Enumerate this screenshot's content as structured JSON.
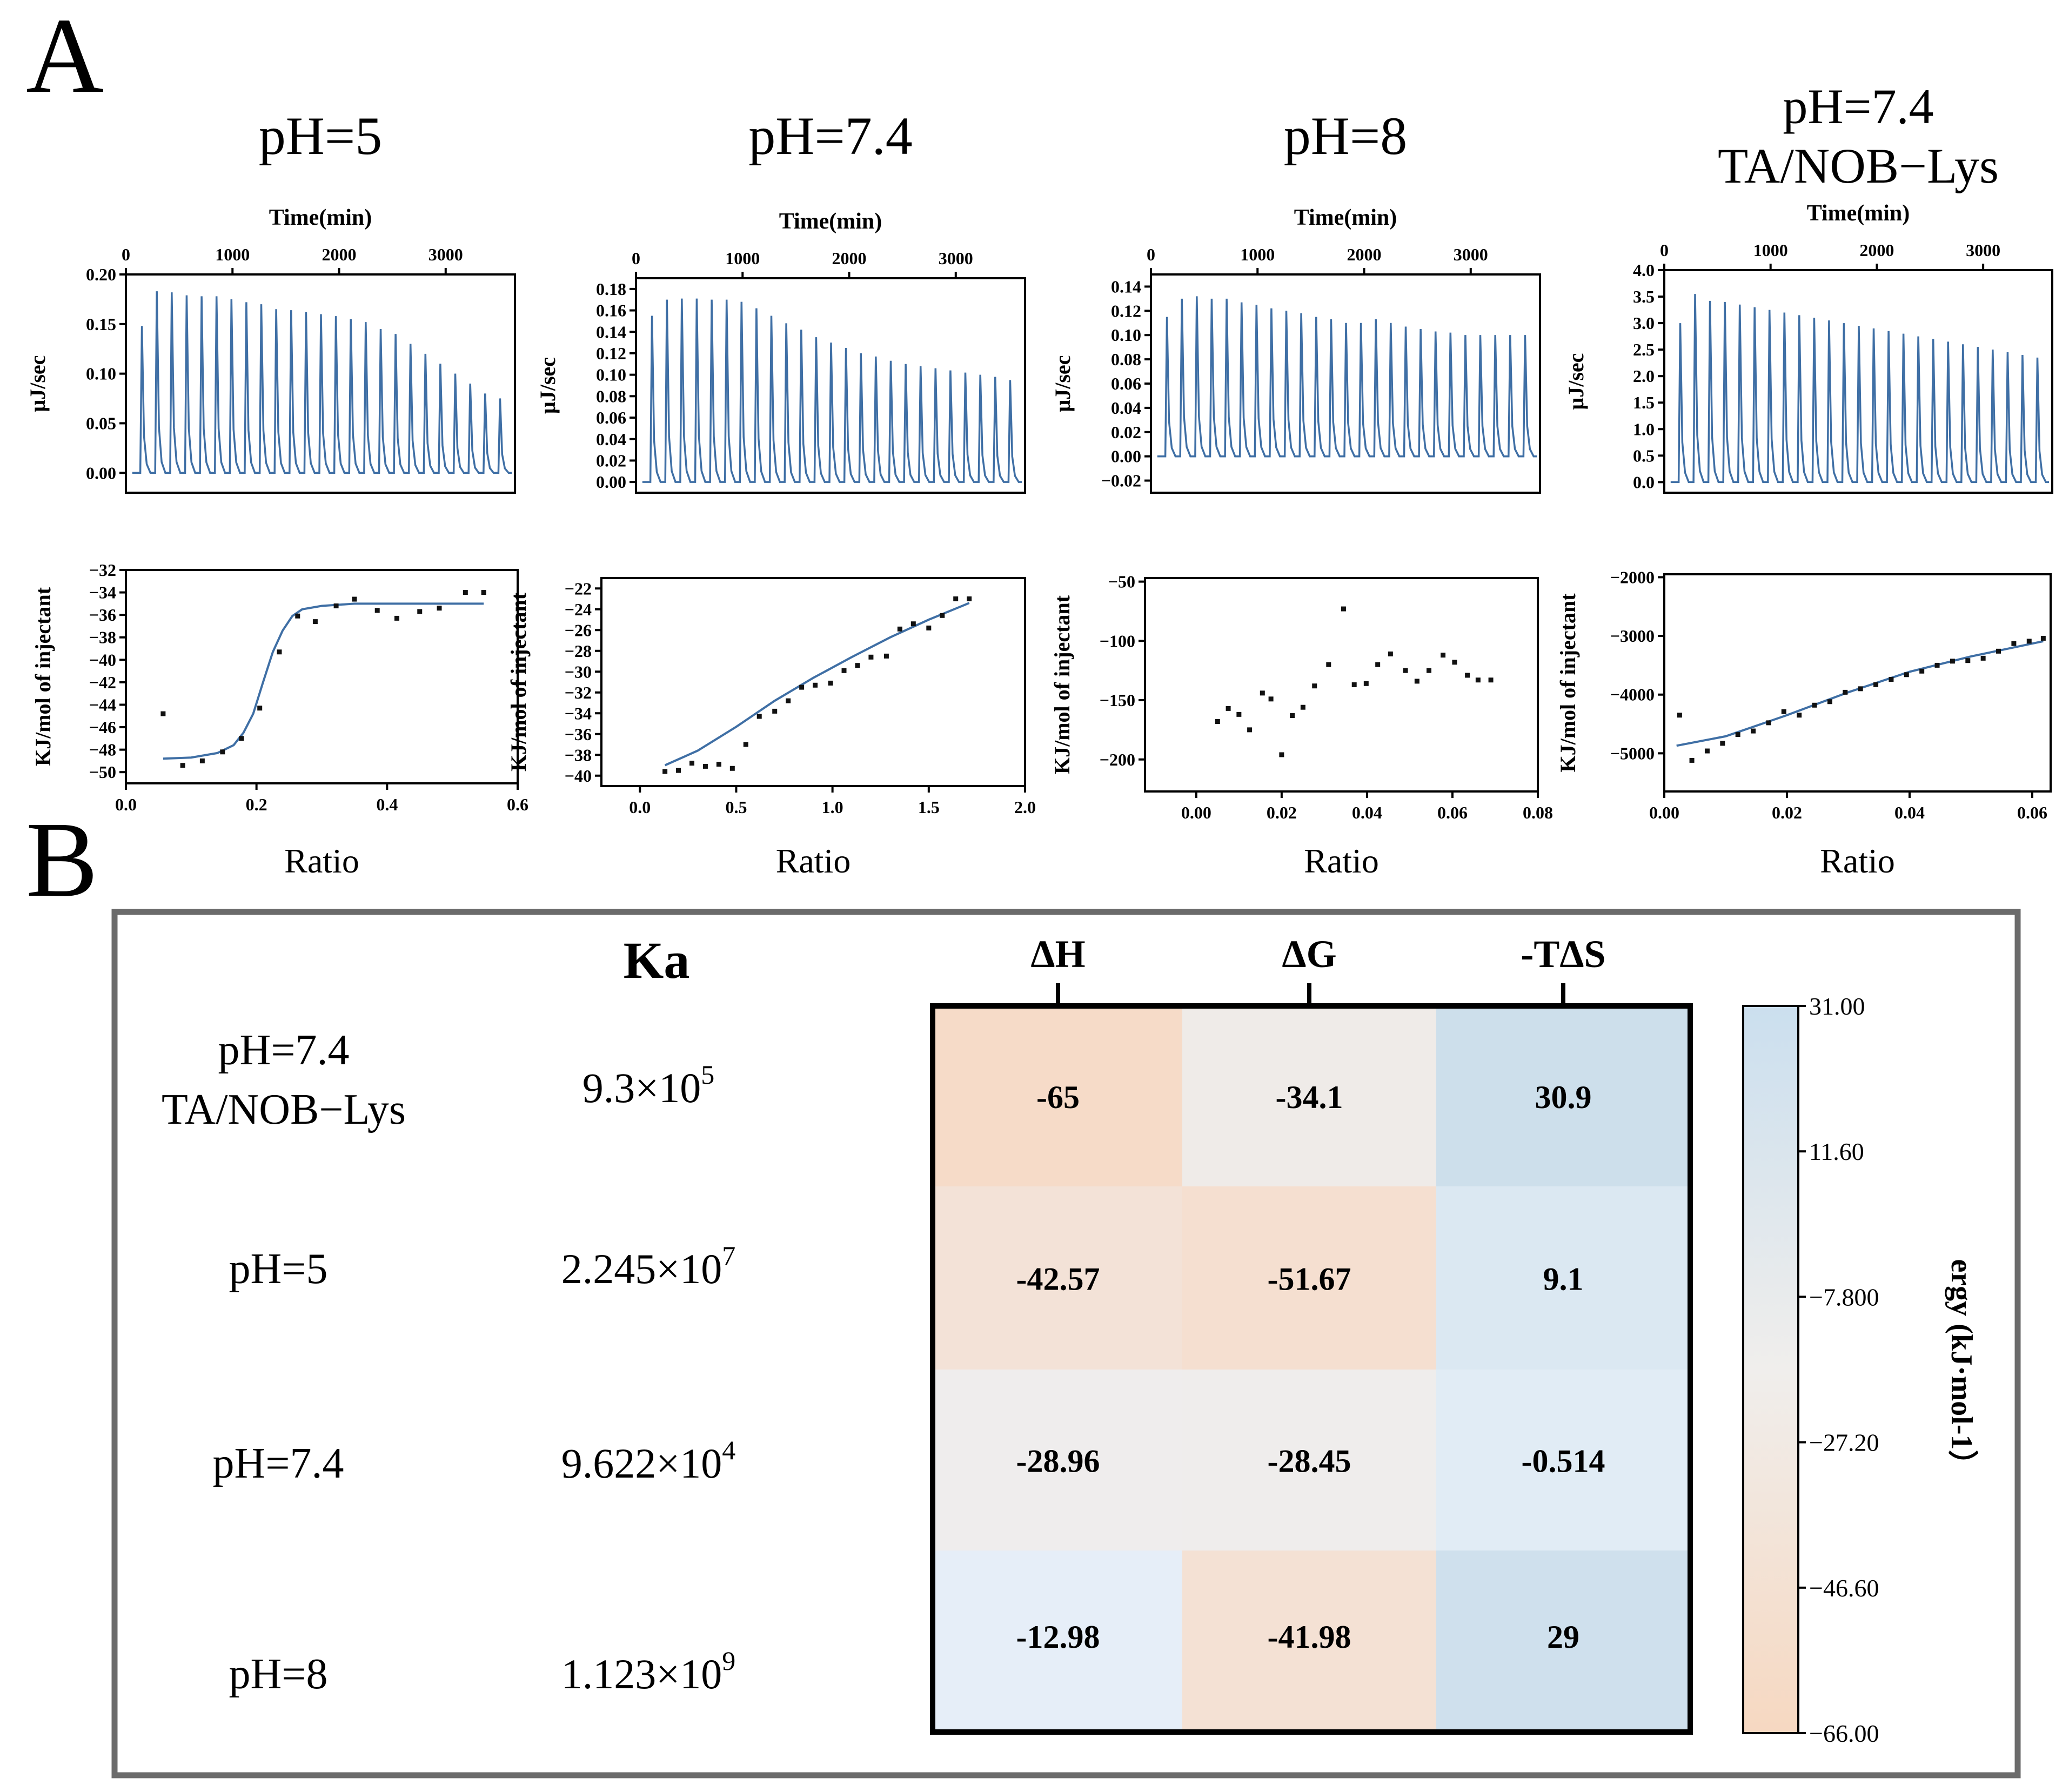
{
  "panel_labels": {
    "a": "A",
    "b": "B"
  },
  "colors": {
    "trace": "#3f6fa5",
    "point": "#111111",
    "axis": "#000000",
    "frame": "#6b6b6b",
    "cmap_low": "#f6d8c1",
    "cmap_mid": "#eeeeee",
    "cmap_high": "#cbdfee"
  },
  "chart_data": [
    {
      "type": "line",
      "id": "raw-ph5",
      "title": "pH=5",
      "xlabel": "Time(min)",
      "ylabel": "μJ/sec",
      "xlim": [
        0,
        3650
      ],
      "ylim": [
        -0.02,
        0.2
      ],
      "xticks": [
        0,
        1000,
        2000,
        3000
      ],
      "yticks": [
        0.0,
        0.05,
        0.1,
        0.15,
        0.2
      ],
      "ytick_labels": [
        "0.00",
        "0.05",
        "0.10",
        "0.15",
        "0.20"
      ],
      "baseline": 0.0,
      "peak_times": [
        150,
        290,
        430,
        570,
        710,
        850,
        990,
        1130,
        1270,
        1410,
        1550,
        1690,
        1830,
        1970,
        2110,
        2250,
        2390,
        2530,
        2670,
        2810,
        2950,
        3090,
        3230,
        3370,
        3510
      ],
      "peak_heights": [
        0.148,
        0.183,
        0.182,
        0.179,
        0.178,
        0.178,
        0.175,
        0.172,
        0.17,
        0.165,
        0.164,
        0.162,
        0.16,
        0.158,
        0.155,
        0.152,
        0.145,
        0.14,
        0.13,
        0.12,
        0.11,
        0.1,
        0.09,
        0.08,
        0.075
      ]
    },
    {
      "type": "line",
      "id": "raw-ph74",
      "title": "pH=7.4",
      "xlabel": "Time(min)",
      "ylabel": "μJ/sec",
      "xlim": [
        0,
        3650
      ],
      "ylim": [
        -0.01,
        0.19
      ],
      "xticks": [
        0,
        1000,
        2000,
        3000
      ],
      "yticks": [
        0.0,
        0.02,
        0.04,
        0.06,
        0.08,
        0.1,
        0.12,
        0.14,
        0.16,
        0.18
      ],
      "ytick_labels": [
        "0.00",
        "0.02",
        "0.04",
        "0.06",
        "0.08",
        "0.10",
        "0.12",
        "0.14",
        "0.16",
        "0.18"
      ],
      "baseline": 0.0,
      "peak_times": [
        150,
        290,
        430,
        570,
        710,
        850,
        990,
        1130,
        1270,
        1410,
        1550,
        1690,
        1830,
        1970,
        2110,
        2250,
        2390,
        2530,
        2670,
        2810,
        2950,
        3090,
        3230,
        3370,
        3510
      ],
      "peak_heights": [
        0.155,
        0.17,
        0.171,
        0.171,
        0.17,
        0.17,
        0.168,
        0.162,
        0.155,
        0.148,
        0.142,
        0.135,
        0.13,
        0.125,
        0.12,
        0.117,
        0.113,
        0.11,
        0.108,
        0.106,
        0.104,
        0.102,
        0.1,
        0.098,
        0.095
      ]
    },
    {
      "type": "line",
      "id": "raw-ph8",
      "title": "pH=8",
      "xlabel": "Time(min)",
      "ylabel": "μJ/sec",
      "xlim": [
        0,
        3650
      ],
      "ylim": [
        -0.03,
        0.15
      ],
      "xticks": [
        0,
        1000,
        2000,
        3000
      ],
      "yticks": [
        -0.02,
        0.0,
        0.02,
        0.04,
        0.06,
        0.08,
        0.1,
        0.12,
        0.14
      ],
      "ytick_labels": [
        "−0.02",
        "0.00",
        "0.02",
        "0.04",
        "0.06",
        "0.08",
        "0.10",
        "0.12",
        "0.14"
      ],
      "baseline": 0.0,
      "peak_times": [
        150,
        290,
        430,
        570,
        710,
        850,
        990,
        1130,
        1270,
        1410,
        1550,
        1690,
        1830,
        1970,
        2110,
        2250,
        2390,
        2530,
        2670,
        2810,
        2950,
        3090,
        3230,
        3370,
        3510
      ],
      "peak_heights": [
        0.115,
        0.13,
        0.132,
        0.13,
        0.13,
        0.127,
        0.125,
        0.122,
        0.12,
        0.118,
        0.115,
        0.113,
        0.11,
        0.11,
        0.113,
        0.11,
        0.107,
        0.105,
        0.103,
        0.102,
        0.1,
        0.1,
        0.1,
        0.1,
        0.1
      ]
    },
    {
      "type": "line",
      "id": "raw-ph74-tanob",
      "title": "pH=7.4\nTA/NOB−Lys",
      "title_lines": [
        "pH=7.4",
        "TA/NOB−Lys"
      ],
      "xlabel": "Time(min)",
      "ylabel": "μJ/sec",
      "xlim": [
        0,
        3650
      ],
      "ylim": [
        -0.2,
        4.0
      ],
      "xticks": [
        0,
        1000,
        2000,
        3000
      ],
      "yticks": [
        0.0,
        0.5,
        1.0,
        1.5,
        2.0,
        2.5,
        3.0,
        3.5,
        4.0
      ],
      "ytick_labels": [
        "0.0",
        "0.5",
        "1.0",
        "1.5",
        "2.0",
        "2.5",
        "3.0",
        "3.5",
        "4.0"
      ],
      "baseline": 0.0,
      "peak_times": [
        150,
        290,
        430,
        570,
        710,
        850,
        990,
        1130,
        1270,
        1410,
        1550,
        1690,
        1830,
        1970,
        2110,
        2250,
        2390,
        2530,
        2670,
        2810,
        2950,
        3090,
        3230,
        3370,
        3510
      ],
      "peak_heights": [
        3.0,
        3.55,
        3.42,
        3.4,
        3.35,
        3.3,
        3.25,
        3.2,
        3.15,
        3.1,
        3.05,
        3.0,
        2.95,
        2.9,
        2.85,
        2.8,
        2.75,
        2.7,
        2.65,
        2.6,
        2.55,
        2.5,
        2.45,
        2.4,
        2.35
      ]
    },
    {
      "type": "scatter",
      "id": "iso-ph5",
      "xlabel": "Ratio",
      "ylabel": "KJ/mol of injectant",
      "xlim": [
        0.0,
        0.6
      ],
      "ylim": [
        -51,
        -32
      ],
      "xticks": [
        0.0,
        0.2,
        0.4,
        0.6
      ],
      "xtick_labels": [
        "0.0",
        "0.2",
        "0.4",
        "0.6"
      ],
      "yticks": [
        -32,
        -34,
        -36,
        -38,
        -40,
        -42,
        -44,
        -46,
        -48,
        -50
      ],
      "ytick_labels": [
        "−32",
        "−34",
        "−36",
        "−38",
        "−40",
        "−42",
        "−44",
        "−46",
        "−48",
        "−50"
      ],
      "points": {
        "x": [
          0.057,
          0.087,
          0.117,
          0.148,
          0.177,
          0.205,
          0.235,
          0.263,
          0.29,
          0.322,
          0.35,
          0.385,
          0.415,
          0.45,
          0.48,
          0.52,
          0.548
        ],
        "y": [
          -44.8,
          -49.4,
          -49.0,
          -48.2,
          -47.0,
          -44.3,
          -39.3,
          -36.1,
          -36.6,
          -35.2,
          -34.6,
          -35.6,
          -36.3,
          -35.7,
          -35.4,
          -34.0,
          -34.0
        ]
      },
      "fit": {
        "x": [
          0.057,
          0.1,
          0.14,
          0.165,
          0.18,
          0.195,
          0.21,
          0.225,
          0.24,
          0.255,
          0.27,
          0.3,
          0.35,
          0.4,
          0.45,
          0.5,
          0.548
        ],
        "y": [
          -48.8,
          -48.7,
          -48.3,
          -47.6,
          -46.5,
          -44.8,
          -42.0,
          -39.3,
          -37.4,
          -36.1,
          -35.5,
          -35.2,
          -35.0,
          -35.0,
          -35.0,
          -35.0,
          -35.0
        ]
      }
    },
    {
      "type": "scatter",
      "id": "iso-ph74",
      "xlabel": "Ratio",
      "ylabel": "KJ/mol of injectant",
      "xlim": [
        -0.2,
        2.0
      ],
      "ylim": [
        -41,
        -21
      ],
      "xticks": [
        0.0,
        0.5,
        1.0,
        1.5,
        2.0
      ],
      "xtick_labels": [
        "0.0",
        "0.5",
        "1.0",
        "1.5",
        "2.0"
      ],
      "yticks": [
        -22,
        -24,
        -26,
        -28,
        -30,
        -32,
        -34,
        -36,
        -38,
        -40
      ],
      "ytick_labels": [
        "−22",
        "−24",
        "−26",
        "−28",
        "−30",
        "−32",
        "−34",
        "−36",
        "−38",
        "−40"
      ],
      "points": {
        "x": [
          0.13,
          0.2,
          0.27,
          0.34,
          0.41,
          0.48,
          0.55,
          0.62,
          0.7,
          0.77,
          0.84,
          0.91,
          0.99,
          1.06,
          1.13,
          1.2,
          1.28,
          1.35,
          1.42,
          1.5,
          1.57,
          1.64,
          1.71
        ],
        "y": [
          -39.6,
          -39.5,
          -38.8,
          -39.1,
          -38.9,
          -39.3,
          -37.0,
          -34.3,
          -33.8,
          -32.8,
          -31.5,
          -31.3,
          -31.1,
          -29.9,
          -29.4,
          -28.6,
          -28.5,
          -25.9,
          -25.4,
          -25.8,
          -24.6,
          -23.0,
          -23.0
        ]
      },
      "fit": {
        "x": [
          0.13,
          0.3,
          0.5,
          0.7,
          0.9,
          1.1,
          1.3,
          1.5,
          1.71
        ],
        "y": [
          -39.0,
          -37.6,
          -35.3,
          -32.8,
          -30.6,
          -28.6,
          -26.7,
          -25.0,
          -23.4
        ]
      }
    },
    {
      "type": "scatter",
      "id": "iso-ph8",
      "xlabel": "Ratio",
      "ylabel": "KJ/mol of injectant",
      "xlim": [
        -0.012,
        0.08
      ],
      "ylim": [
        -227,
        -47
      ],
      "xticks": [
        0.0,
        0.02,
        0.04,
        0.06,
        0.08
      ],
      "xtick_labels": [
        "0.00",
        "0.02",
        "0.04",
        "0.06",
        "0.08"
      ],
      "yticks": [
        -50,
        -100,
        -150,
        -200
      ],
      "ytick_labels": [
        "−50",
        "−100",
        "−150",
        "−200"
      ],
      "points": {
        "x": [
          0.005,
          0.0075,
          0.01,
          0.0125,
          0.0155,
          0.0175,
          0.02,
          0.0225,
          0.025,
          0.0277,
          0.031,
          0.0345,
          0.037,
          0.0398,
          0.0425,
          0.0455,
          0.049,
          0.0517,
          0.0545,
          0.0578,
          0.0605,
          0.0635,
          0.066,
          0.069
        ],
        "y": [
          -168,
          -157,
          -162,
          -175,
          -144,
          -149,
          -196,
          -163,
          -156,
          -138,
          -120,
          -73,
          -137,
          -136,
          -120,
          -111,
          -125,
          -134,
          -125,
          -112,
          -118,
          -129,
          -133,
          -133
        ]
      }
    },
    {
      "type": "scatter",
      "id": "iso-ph74-tanob",
      "xlabel": "Ratio",
      "ylabel": "KJ/mol of injectant",
      "xlim": [
        0.0,
        0.063
      ],
      "ylim": [
        -5650,
        -1950
      ],
      "xticks": [
        0.0,
        0.02,
        0.04,
        0.06
      ],
      "xtick_labels": [
        "0.00",
        "0.02",
        "0.04",
        "0.06"
      ],
      "yticks": [
        -2000,
        -3000,
        -4000,
        -5000
      ],
      "ytick_labels": [
        "−2000",
        "−3000",
        "−4000",
        "−5000"
      ],
      "points": {
        "x": [
          0.0025,
          0.0045,
          0.007,
          0.0095,
          0.012,
          0.0145,
          0.017,
          0.0195,
          0.022,
          0.0245,
          0.027,
          0.0295,
          0.032,
          0.0345,
          0.037,
          0.0395,
          0.042,
          0.0445,
          0.047,
          0.0495,
          0.052,
          0.0545,
          0.057,
          0.0595,
          0.0618
        ],
        "y": [
          -4350,
          -5120,
          -4960,
          -4830,
          -4680,
          -4620,
          -4480,
          -4290,
          -4350,
          -4180,
          -4120,
          -3960,
          -3900,
          -3830,
          -3740,
          -3660,
          -3600,
          -3500,
          -3430,
          -3420,
          -3380,
          -3260,
          -3130,
          -3090,
          -3040
        ]
      },
      "fit": {
        "x": [
          0.002,
          0.01,
          0.02,
          0.03,
          0.04,
          0.05,
          0.0618
        ],
        "y": [
          -4870,
          -4710,
          -4350,
          -3960,
          -3610,
          -3350,
          -3090
        ]
      }
    },
    {
      "type": "heatmap",
      "id": "thermo-heatmap",
      "columns": [
        "ΔH",
        "ΔG",
        "-TΔS"
      ],
      "rows": [
        {
          "label_lines": [
            "pH=7.4",
            "TA/NOB−Lys"
          ],
          "ka_mant": "9.3×10",
          "ka_exp": "5",
          "values": [
            -65,
            -34.1,
            30.9
          ],
          "value_labels": [
            "-65",
            "-34.1",
            "30.9"
          ]
        },
        {
          "label_lines": [
            "pH=5"
          ],
          "ka_mant": "2.245×10",
          "ka_exp": "7",
          "values": [
            -42.57,
            -51.67,
            9.1
          ],
          "value_labels": [
            "-42.57",
            "-51.67",
            "9.1"
          ]
        },
        {
          "label_lines": [
            "pH=7.4"
          ],
          "ka_mant": "9.622×10",
          "ka_exp": "4",
          "values": [
            -28.96,
            -28.45,
            -0.514
          ],
          "value_labels": [
            "-28.96",
            "-28.45",
            "-0.514"
          ]
        },
        {
          "label_lines": [
            "pH=8"
          ],
          "ka_mant": "1.123×10",
          "ka_exp": "9",
          "values": [
            -12.98,
            -41.98,
            29
          ],
          "value_labels": [
            "-12.98",
            "-41.98",
            "29"
          ]
        }
      ],
      "ka_header": "Ka",
      "cell_colors": [
        [
          "#f6dbc8",
          "#efebe8",
          "#cddfeb"
        ],
        [
          "#f3e2d7",
          "#f5dfd0",
          "#dbe8f2"
        ],
        [
          "#efeded",
          "#efedec",
          "#e1ecf5"
        ],
        [
          "#e6eef8",
          "#f4e1d4",
          "#cfe0ed"
        ]
      ],
      "colorbar": {
        "min": -66.0,
        "max": 31.0,
        "ticks": [
          31.0,
          11.6,
          -7.8,
          -27.2,
          -46.6,
          -66.0
        ],
        "tick_labels": [
          "31.00",
          "11.60",
          "−7.800",
          "−27.20",
          "−46.60",
          "−66.00"
        ],
        "label": "ergy (kJ·mol-1）"
      }
    }
  ]
}
